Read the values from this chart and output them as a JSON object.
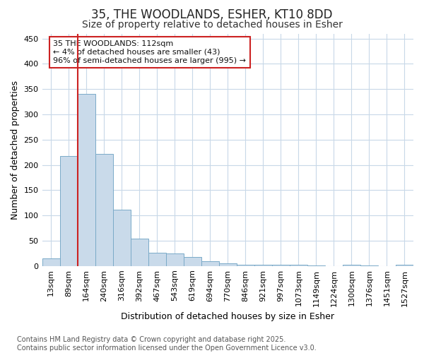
{
  "title1": "35, THE WOODLANDS, ESHER, KT10 8DD",
  "title2": "Size of property relative to detached houses in Esher",
  "xlabel": "Distribution of detached houses by size in Esher",
  "ylabel": "Number of detached properties",
  "bar_labels": [
    "13sqm",
    "89sqm",
    "164sqm",
    "240sqm",
    "316sqm",
    "392sqm",
    "467sqm",
    "543sqm",
    "619sqm",
    "694sqm",
    "770sqm",
    "846sqm",
    "921sqm",
    "997sqm",
    "1073sqm",
    "1149sqm",
    "1224sqm",
    "1300sqm",
    "1376sqm",
    "1451sqm",
    "1527sqm"
  ],
  "bar_values": [
    15,
    217,
    340,
    222,
    112,
    54,
    26,
    25,
    18,
    9,
    5,
    3,
    2,
    2,
    2,
    1,
    0,
    3,
    1,
    0,
    3
  ],
  "bar_color": "#c9daea",
  "bar_edge_color": "#7aaac8",
  "vline_color": "#cc2222",
  "vline_x": 1.5,
  "annotation_text": "35 THE WOODLANDS: 112sqm\n← 4% of detached houses are smaller (43)\n96% of semi-detached houses are larger (995) →",
  "annotation_box_facecolor": "#ffffff",
  "annotation_box_edgecolor": "#cc2222",
  "ylim": [
    0,
    460
  ],
  "yticks": [
    0,
    50,
    100,
    150,
    200,
    250,
    300,
    350,
    400,
    450
  ],
  "bg_color": "#ffffff",
  "grid_color": "#c8d8e8",
  "footnote": "Contains HM Land Registry data © Crown copyright and database right 2025.\nContains public sector information licensed under the Open Government Licence v3.0.",
  "title1_fontsize": 12,
  "title2_fontsize": 10,
  "axis_label_fontsize": 9,
  "tick_fontsize": 8,
  "annotation_fontsize": 8,
  "footnote_fontsize": 7
}
